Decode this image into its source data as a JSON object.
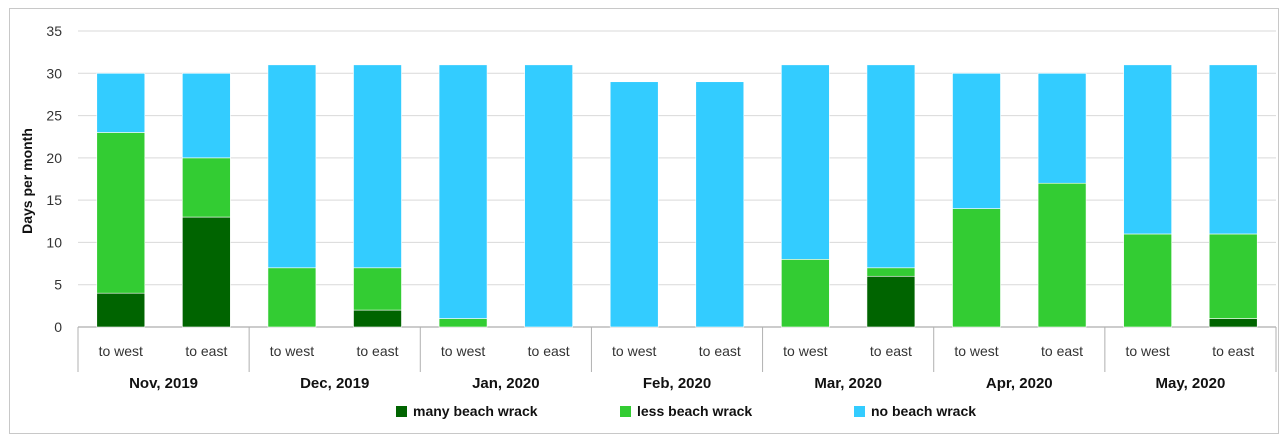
{
  "chart_data": {
    "type": "bar",
    "stacked": true,
    "ylabel": "Days per month",
    "xlabel": "",
    "ylim": [
      0,
      35
    ],
    "yticks": [
      0,
      5,
      10,
      15,
      20,
      25,
      30,
      35
    ],
    "grid": true,
    "legend_position": "bottom",
    "groups": [
      "Nov, 2019",
      "Dec, 2019",
      "Jan, 2020",
      "Feb, 2020",
      "Mar, 2020",
      "Apr, 2020",
      "May, 2020"
    ],
    "subcategories": [
      "to west",
      "to east"
    ],
    "categories": [
      "to west",
      "to east",
      "to west",
      "to east",
      "to west",
      "to east",
      "to west",
      "to east",
      "to west",
      "to east",
      "to west",
      "to east",
      "to west",
      "to east"
    ],
    "series": [
      {
        "name": "many beach wrack",
        "color": "#006400",
        "values": [
          4,
          13,
          0,
          2,
          0,
          0,
          0,
          0,
          0,
          6,
          0,
          0,
          0,
          1
        ]
      },
      {
        "name": "less beach wrack",
        "color": "#33cc33",
        "values": [
          19,
          7,
          7,
          5,
          1,
          0,
          0,
          0,
          8,
          1,
          14,
          17,
          11,
          10
        ]
      },
      {
        "name": "no beach wrack",
        "color": "#33ccff",
        "values": [
          7,
          10,
          24,
          24,
          30,
          31,
          29,
          29,
          23,
          24,
          16,
          13,
          20,
          20
        ]
      }
    ]
  }
}
